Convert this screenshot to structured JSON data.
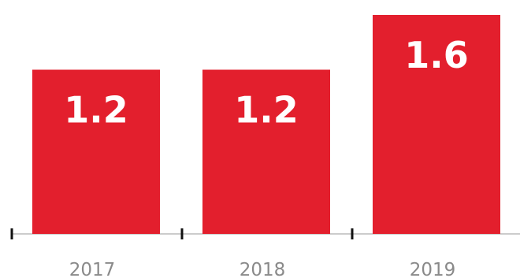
{
  "chart_data": {
    "type": "bar",
    "categories": [
      "2017",
      "2018",
      "2019"
    ],
    "values": [
      1.2,
      1.2,
      1.6
    ],
    "data_labels": [
      "1.2",
      "1.2",
      "1.6"
    ],
    "title": "",
    "xlabel": "",
    "ylabel": "",
    "ylim": [
      0,
      1.6
    ],
    "grid": false,
    "legend": "none",
    "colors": {
      "bar": "#e31f2d",
      "axis": "#cccccc",
      "tick": "#111111",
      "tick_label": "#8a8a8a",
      "value_label": "#ffffff"
    }
  }
}
